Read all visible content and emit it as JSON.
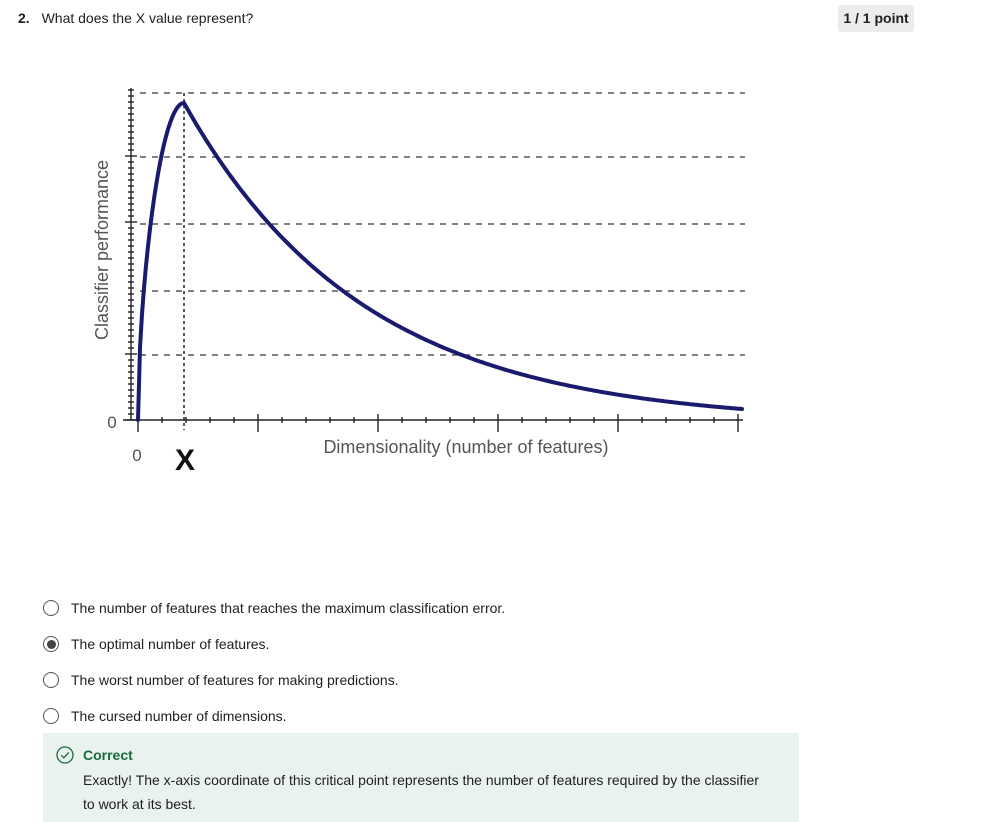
{
  "question": {
    "number": "2.",
    "text": "What does the X value represent?",
    "points": "1 / 1 point"
  },
  "figure": {
    "ylabel": "Classifier performance",
    "xlabel": "Dimensionality (number of features)",
    "y_zero_label": "0",
    "x_zero_label": "0",
    "x_marker_label": "X"
  },
  "options": [
    {
      "label": "The number of features that reaches the maximum classification error.",
      "selected": false
    },
    {
      "label": "The optimal number of features.",
      "selected": true
    },
    {
      "label": "The worst number of features for making predictions.",
      "selected": false
    },
    {
      "label": "The cursed number of dimensions.",
      "selected": false
    }
  ],
  "feedback": {
    "status": "Correct",
    "text": "Exactly! The x-axis coordinate of this critical point represents the number of features required by the classifier to work at its best.",
    "icon": "check-circle-icon",
    "color": "#1b6b3a",
    "background": "#e9f2ef"
  },
  "colors": {
    "curve": "#1a1a6e",
    "badge_bg": "#ececec"
  }
}
